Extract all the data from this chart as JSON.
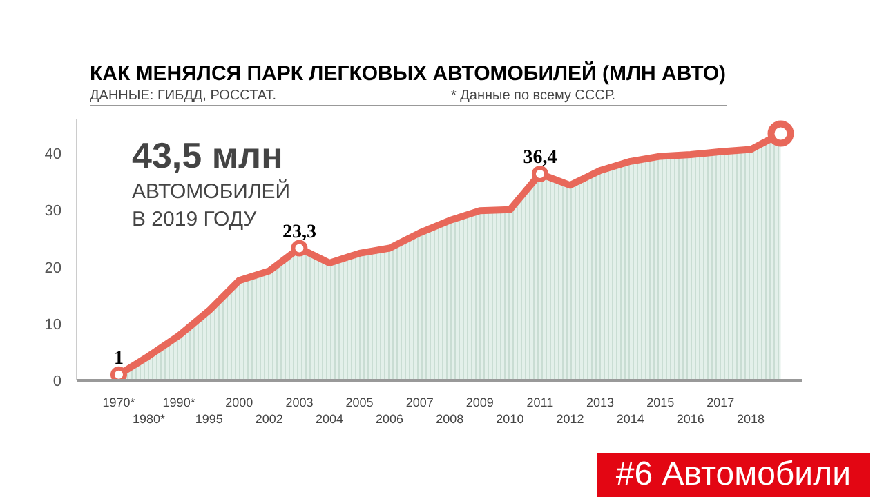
{
  "chart_data": {
    "type": "area",
    "title": "КАК МЕНЯЛСЯ ПАРК ЛЕГКОВЫХ АВТОМОБИЛЕЙ (МЛН АВТО)",
    "annotations": [
      "ДАННЫЕ: ГИБДД, РОССТАТ.",
      "* Данные по всему СССР.",
      "43,5 млн",
      "АВТОМОБИЛЕЙ",
      "В 2019 ГОДУ",
      "#6 Автомобили"
    ],
    "categories": [
      "1970*",
      "1980*",
      "1990*",
      "1995",
      "2000",
      "2002",
      "2003",
      "2004",
      "2005",
      "2006",
      "2007",
      "2008",
      "2009",
      "2010",
      "2011",
      "2012",
      "2013",
      "2014",
      "2015",
      "2016",
      "2017",
      "2018",
      null
    ],
    "series": [
      {
        "color": "#e8685a",
        "values": [
          1,
          4.3,
          7.9,
          12.3,
          17.6,
          19.3,
          23.3,
          20.7,
          22.4,
          23.3,
          26,
          28.2,
          29.9,
          30.1,
          36.4,
          34.4,
          37,
          38.6,
          39.5,
          39.8,
          40.3,
          40.7,
          43.5
        ],
        "value_labels": [
          "1",
          null,
          null,
          null,
          null,
          null,
          "23,3",
          null,
          null,
          null,
          null,
          null,
          null,
          null,
          "36,4",
          null,
          null,
          null,
          null,
          null,
          null,
          null,
          null
        ]
      }
    ],
    "ylim": [
      0,
      46
    ],
    "yticks": [
      0,
      10,
      20,
      30,
      40
    ],
    "grid": false
  }
}
